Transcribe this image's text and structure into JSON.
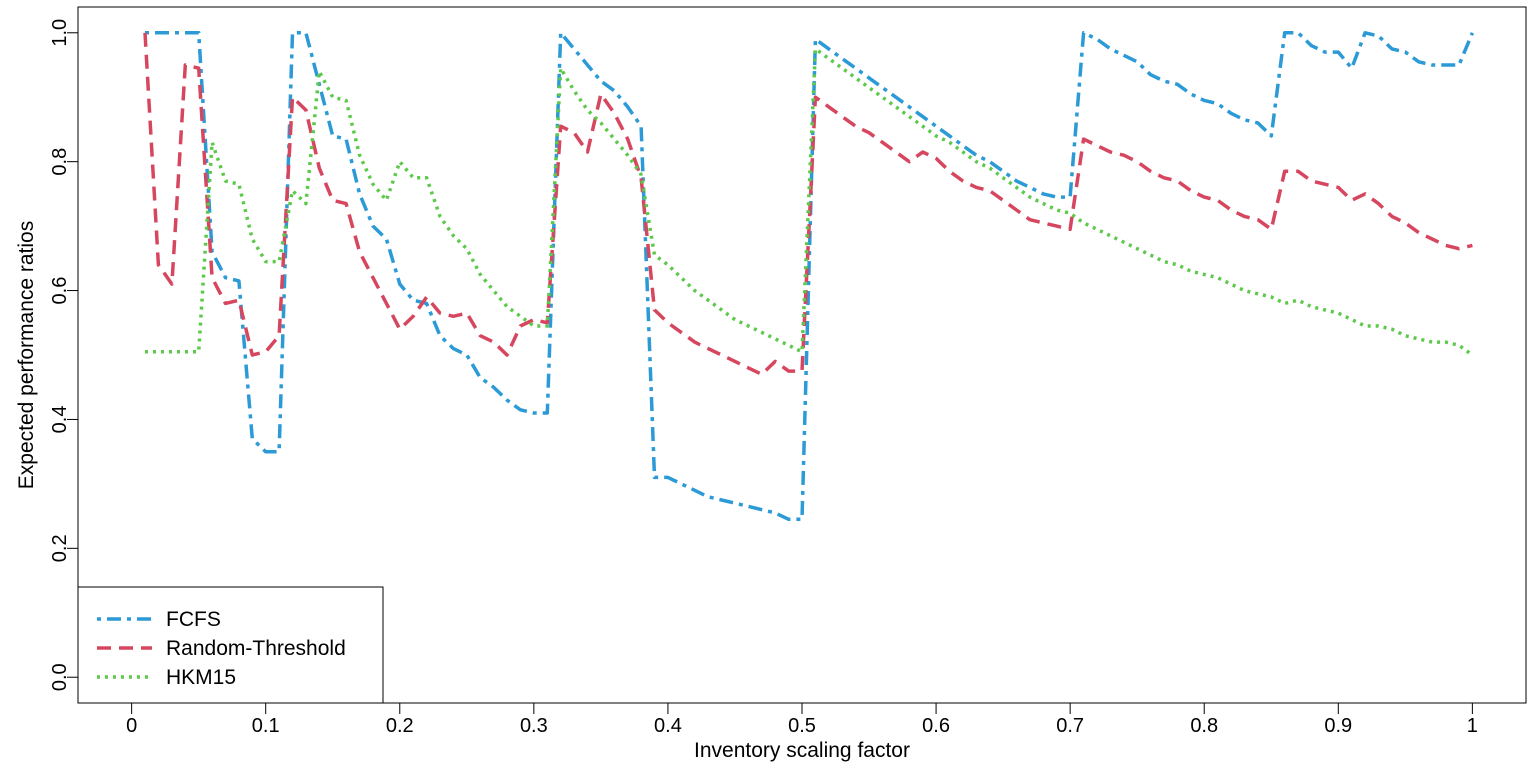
{
  "chart_data": {
    "type": "line",
    "xlabel": "Inventory scaling factor",
    "ylabel": "Expected performance ratios",
    "xlim": [
      -0.04,
      1.04
    ],
    "ylim": [
      -0.04,
      1.04
    ],
    "x_ticks": [
      0,
      0.1,
      0.2,
      0.3,
      0.4,
      0.5,
      0.6,
      0.7,
      0.8,
      0.9,
      1
    ],
    "x_tick_labels": [
      "0",
      "0.1",
      "0.2",
      "0.3",
      "0.4",
      "0.5",
      "0.6",
      "0.7",
      "0.8",
      "0.9",
      "1"
    ],
    "y_ticks": [
      0,
      0.2,
      0.4,
      0.6,
      0.8,
      1
    ],
    "y_tick_labels": [
      "0.0",
      "0.2",
      "0.4",
      "0.6",
      "0.8",
      "1.0"
    ],
    "grid": false,
    "legend_position": "bottom-left",
    "series": [
      {
        "name": "FCFS",
        "color": "#2b9ad6",
        "dash": "dot-dash",
        "points": [
          [
            0.01,
            1.0
          ],
          [
            0.05,
            1.0
          ],
          [
            0.06,
            0.66
          ],
          [
            0.07,
            0.62
          ],
          [
            0.08,
            0.615
          ],
          [
            0.09,
            0.37
          ],
          [
            0.1,
            0.35
          ],
          [
            0.11,
            0.35
          ],
          [
            0.12,
            1.0
          ],
          [
            0.13,
            1.0
          ],
          [
            0.14,
            0.92
          ],
          [
            0.15,
            0.84
          ],
          [
            0.16,
            0.835
          ],
          [
            0.17,
            0.75
          ],
          [
            0.18,
            0.7
          ],
          [
            0.19,
            0.68
          ],
          [
            0.2,
            0.61
          ],
          [
            0.21,
            0.585
          ],
          [
            0.22,
            0.58
          ],
          [
            0.23,
            0.53
          ],
          [
            0.24,
            0.51
          ],
          [
            0.25,
            0.5
          ],
          [
            0.26,
            0.465
          ],
          [
            0.27,
            0.45
          ],
          [
            0.28,
            0.43
          ],
          [
            0.29,
            0.415
          ],
          [
            0.3,
            0.41
          ],
          [
            0.31,
            0.41
          ],
          [
            0.32,
            1.0
          ],
          [
            0.33,
            0.975
          ],
          [
            0.34,
            0.95
          ],
          [
            0.35,
            0.925
          ],
          [
            0.36,
            0.91
          ],
          [
            0.37,
            0.885
          ],
          [
            0.38,
            0.855
          ],
          [
            0.39,
            0.31
          ],
          [
            0.4,
            0.31
          ],
          [
            0.41,
            0.3
          ],
          [
            0.42,
            0.29
          ],
          [
            0.43,
            0.28
          ],
          [
            0.44,
            0.275
          ],
          [
            0.45,
            0.27
          ],
          [
            0.46,
            0.265
          ],
          [
            0.47,
            0.26
          ],
          [
            0.48,
            0.255
          ],
          [
            0.49,
            0.245
          ],
          [
            0.5,
            0.245
          ],
          [
            0.51,
            0.99
          ],
          [
            0.52,
            0.975
          ],
          [
            0.53,
            0.96
          ],
          [
            0.54,
            0.945
          ],
          [
            0.55,
            0.93
          ],
          [
            0.56,
            0.915
          ],
          [
            0.57,
            0.9
          ],
          [
            0.58,
            0.885
          ],
          [
            0.59,
            0.87
          ],
          [
            0.6,
            0.855
          ],
          [
            0.61,
            0.84
          ],
          [
            0.62,
            0.825
          ],
          [
            0.63,
            0.81
          ],
          [
            0.64,
            0.8
          ],
          [
            0.65,
            0.785
          ],
          [
            0.66,
            0.77
          ],
          [
            0.67,
            0.76
          ],
          [
            0.68,
            0.75
          ],
          [
            0.69,
            0.745
          ],
          [
            0.7,
            0.745
          ],
          [
            0.71,
            1.0
          ],
          [
            0.72,
            0.99
          ],
          [
            0.73,
            0.975
          ],
          [
            0.74,
            0.965
          ],
          [
            0.75,
            0.955
          ],
          [
            0.76,
            0.935
          ],
          [
            0.77,
            0.925
          ],
          [
            0.78,
            0.92
          ],
          [
            0.79,
            0.905
          ],
          [
            0.8,
            0.895
          ],
          [
            0.81,
            0.89
          ],
          [
            0.82,
            0.875
          ],
          [
            0.83,
            0.865
          ],
          [
            0.84,
            0.86
          ],
          [
            0.85,
            0.84
          ],
          [
            0.86,
            1.0
          ],
          [
            0.87,
            1.0
          ],
          [
            0.88,
            0.98
          ],
          [
            0.89,
            0.97
          ],
          [
            0.9,
            0.97
          ],
          [
            0.91,
            0.945
          ],
          [
            0.92,
            1.0
          ],
          [
            0.93,
            0.995
          ],
          [
            0.94,
            0.975
          ],
          [
            0.95,
            0.97
          ],
          [
            0.96,
            0.955
          ],
          [
            0.97,
            0.95
          ],
          [
            0.98,
            0.95
          ],
          [
            0.99,
            0.95
          ],
          [
            1.0,
            1.0
          ]
        ]
      },
      {
        "name": "Random-Threshold",
        "color": "#d6475f",
        "dash": "dashed",
        "points": [
          [
            0.01,
            1.0
          ],
          [
            0.02,
            0.64
          ],
          [
            0.03,
            0.61
          ],
          [
            0.04,
            0.95
          ],
          [
            0.05,
            0.945
          ],
          [
            0.06,
            0.62
          ],
          [
            0.07,
            0.58
          ],
          [
            0.08,
            0.585
          ],
          [
            0.09,
            0.5
          ],
          [
            0.1,
            0.505
          ],
          [
            0.11,
            0.53
          ],
          [
            0.12,
            0.9
          ],
          [
            0.13,
            0.88
          ],
          [
            0.14,
            0.79
          ],
          [
            0.15,
            0.74
          ],
          [
            0.16,
            0.735
          ],
          [
            0.17,
            0.66
          ],
          [
            0.18,
            0.62
          ],
          [
            0.19,
            0.58
          ],
          [
            0.2,
            0.54
          ],
          [
            0.21,
            0.56
          ],
          [
            0.22,
            0.59
          ],
          [
            0.23,
            0.565
          ],
          [
            0.24,
            0.56
          ],
          [
            0.25,
            0.565
          ],
          [
            0.26,
            0.53
          ],
          [
            0.27,
            0.52
          ],
          [
            0.28,
            0.5
          ],
          [
            0.29,
            0.545
          ],
          [
            0.3,
            0.555
          ],
          [
            0.31,
            0.55
          ],
          [
            0.32,
            0.855
          ],
          [
            0.33,
            0.845
          ],
          [
            0.34,
            0.815
          ],
          [
            0.35,
            0.905
          ],
          [
            0.36,
            0.875
          ],
          [
            0.37,
            0.835
          ],
          [
            0.38,
            0.775
          ],
          [
            0.39,
            0.57
          ],
          [
            0.4,
            0.55
          ],
          [
            0.41,
            0.535
          ],
          [
            0.42,
            0.52
          ],
          [
            0.43,
            0.51
          ],
          [
            0.44,
            0.5
          ],
          [
            0.45,
            0.49
          ],
          [
            0.46,
            0.48
          ],
          [
            0.47,
            0.47
          ],
          [
            0.48,
            0.49
          ],
          [
            0.49,
            0.475
          ],
          [
            0.5,
            0.475
          ],
          [
            0.51,
            0.9
          ],
          [
            0.52,
            0.885
          ],
          [
            0.53,
            0.87
          ],
          [
            0.54,
            0.855
          ],
          [
            0.55,
            0.845
          ],
          [
            0.56,
            0.83
          ],
          [
            0.57,
            0.815
          ],
          [
            0.58,
            0.8
          ],
          [
            0.59,
            0.815
          ],
          [
            0.6,
            0.805
          ],
          [
            0.61,
            0.785
          ],
          [
            0.62,
            0.77
          ],
          [
            0.63,
            0.76
          ],
          [
            0.64,
            0.755
          ],
          [
            0.65,
            0.74
          ],
          [
            0.66,
            0.725
          ],
          [
            0.67,
            0.71
          ],
          [
            0.68,
            0.705
          ],
          [
            0.69,
            0.7
          ],
          [
            0.7,
            0.695
          ],
          [
            0.71,
            0.835
          ],
          [
            0.72,
            0.825
          ],
          [
            0.73,
            0.815
          ],
          [
            0.74,
            0.81
          ],
          [
            0.75,
            0.8
          ],
          [
            0.76,
            0.785
          ],
          [
            0.77,
            0.775
          ],
          [
            0.78,
            0.77
          ],
          [
            0.79,
            0.755
          ],
          [
            0.8,
            0.745
          ],
          [
            0.81,
            0.74
          ],
          [
            0.82,
            0.725
          ],
          [
            0.83,
            0.715
          ],
          [
            0.84,
            0.71
          ],
          [
            0.85,
            0.695
          ],
          [
            0.86,
            0.785
          ],
          [
            0.87,
            0.785
          ],
          [
            0.88,
            0.77
          ],
          [
            0.89,
            0.765
          ],
          [
            0.9,
            0.76
          ],
          [
            0.91,
            0.74
          ],
          [
            0.92,
            0.75
          ],
          [
            0.93,
            0.735
          ],
          [
            0.94,
            0.715
          ],
          [
            0.95,
            0.705
          ],
          [
            0.96,
            0.69
          ],
          [
            0.97,
            0.68
          ],
          [
            0.98,
            0.67
          ],
          [
            0.99,
            0.665
          ],
          [
            1.0,
            0.67
          ]
        ]
      },
      {
        "name": "HKM15",
        "color": "#5cc94a",
        "dash": "dotted",
        "points": [
          [
            0.01,
            0.505
          ],
          [
            0.02,
            0.505
          ],
          [
            0.03,
            0.505
          ],
          [
            0.04,
            0.505
          ],
          [
            0.05,
            0.505
          ],
          [
            0.06,
            0.83
          ],
          [
            0.07,
            0.77
          ],
          [
            0.08,
            0.765
          ],
          [
            0.09,
            0.68
          ],
          [
            0.1,
            0.645
          ],
          [
            0.11,
            0.645
          ],
          [
            0.12,
            0.755
          ],
          [
            0.13,
            0.735
          ],
          [
            0.14,
            0.94
          ],
          [
            0.15,
            0.9
          ],
          [
            0.16,
            0.895
          ],
          [
            0.17,
            0.81
          ],
          [
            0.18,
            0.765
          ],
          [
            0.19,
            0.74
          ],
          [
            0.2,
            0.8
          ],
          [
            0.21,
            0.775
          ],
          [
            0.22,
            0.775
          ],
          [
            0.23,
            0.715
          ],
          [
            0.24,
            0.685
          ],
          [
            0.25,
            0.665
          ],
          [
            0.26,
            0.625
          ],
          [
            0.27,
            0.6
          ],
          [
            0.28,
            0.575
          ],
          [
            0.29,
            0.56
          ],
          [
            0.3,
            0.545
          ],
          [
            0.31,
            0.545
          ],
          [
            0.32,
            0.945
          ],
          [
            0.33,
            0.91
          ],
          [
            0.34,
            0.88
          ],
          [
            0.35,
            0.86
          ],
          [
            0.36,
            0.835
          ],
          [
            0.37,
            0.81
          ],
          [
            0.38,
            0.78
          ],
          [
            0.39,
            0.655
          ],
          [
            0.4,
            0.64
          ],
          [
            0.41,
            0.62
          ],
          [
            0.42,
            0.6
          ],
          [
            0.43,
            0.585
          ],
          [
            0.44,
            0.57
          ],
          [
            0.45,
            0.555
          ],
          [
            0.46,
            0.545
          ],
          [
            0.47,
            0.535
          ],
          [
            0.48,
            0.525
          ],
          [
            0.49,
            0.515
          ],
          [
            0.5,
            0.505
          ],
          [
            0.51,
            0.975
          ],
          [
            0.52,
            0.96
          ],
          [
            0.53,
            0.945
          ],
          [
            0.54,
            0.93
          ],
          [
            0.55,
            0.915
          ],
          [
            0.56,
            0.9
          ],
          [
            0.57,
            0.885
          ],
          [
            0.58,
            0.87
          ],
          [
            0.59,
            0.855
          ],
          [
            0.6,
            0.84
          ],
          [
            0.61,
            0.83
          ],
          [
            0.62,
            0.815
          ],
          [
            0.63,
            0.8
          ],
          [
            0.64,
            0.79
          ],
          [
            0.65,
            0.775
          ],
          [
            0.66,
            0.76
          ],
          [
            0.67,
            0.745
          ],
          [
            0.68,
            0.735
          ],
          [
            0.69,
            0.725
          ],
          [
            0.7,
            0.72
          ],
          [
            0.71,
            0.705
          ],
          [
            0.72,
            0.695
          ],
          [
            0.73,
            0.685
          ],
          [
            0.74,
            0.675
          ],
          [
            0.75,
            0.665
          ],
          [
            0.76,
            0.655
          ],
          [
            0.77,
            0.645
          ],
          [
            0.78,
            0.64
          ],
          [
            0.79,
            0.63
          ],
          [
            0.8,
            0.625
          ],
          [
            0.81,
            0.62
          ],
          [
            0.82,
            0.61
          ],
          [
            0.83,
            0.6
          ],
          [
            0.84,
            0.595
          ],
          [
            0.85,
            0.59
          ],
          [
            0.86,
            0.58
          ],
          [
            0.87,
            0.585
          ],
          [
            0.88,
            0.575
          ],
          [
            0.89,
            0.57
          ],
          [
            0.9,
            0.565
          ],
          [
            0.91,
            0.555
          ],
          [
            0.92,
            0.545
          ],
          [
            0.93,
            0.545
          ],
          [
            0.94,
            0.54
          ],
          [
            0.95,
            0.53
          ],
          [
            0.96,
            0.525
          ],
          [
            0.97,
            0.52
          ],
          [
            0.98,
            0.52
          ],
          [
            0.99,
            0.515
          ],
          [
            1.0,
            0.5
          ]
        ]
      }
    ]
  }
}
